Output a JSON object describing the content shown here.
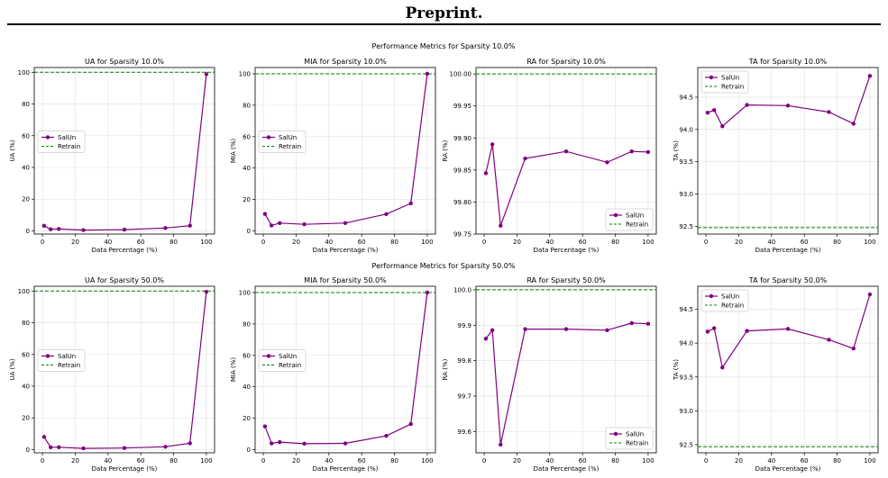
{
  "header": {
    "title": "Preprint."
  },
  "colors": {
    "salun": "#800080",
    "retrain": "#008000",
    "grid": "#e0e0e0"
  },
  "rows": [
    {
      "suptitle": "Performance Metrics for Sparsity 10.0%"
    },
    {
      "suptitle": "Performance Metrics for Sparsity 50.0%"
    }
  ],
  "chart_data": [
    {
      "type": "line",
      "title": "UA for Sparsity 10.0%",
      "xlabel": "Data Percentage (%)",
      "ylabel": "UA (%)",
      "xlim": [
        -5,
        105
      ],
      "ylim": [
        -2,
        103
      ],
      "xticks": [
        0,
        20,
        40,
        60,
        80,
        100
      ],
      "xtick_labels": [
        "0",
        "20",
        "40",
        "60",
        "80",
        "100"
      ],
      "yticks": [
        0,
        20,
        40,
        60,
        80,
        100
      ],
      "ytick_labels": [
        "0",
        "20",
        "40",
        "60",
        "80",
        "100"
      ],
      "x": [
        1,
        5,
        10,
        25,
        50,
        75,
        90,
        100
      ],
      "series": [
        {
          "name": "SalUn",
          "values": [
            3.2,
            1.0,
            1.2,
            0.5,
            0.8,
            1.8,
            3.3,
            98.8
          ]
        }
      ],
      "reference": {
        "name": "Retrain",
        "value": 100
      },
      "legend": "center-left",
      "grid": true
    },
    {
      "type": "line",
      "title": "MIA for Sparsity 10.0%",
      "xlabel": "Data Percentage (%)",
      "ylabel": "MIA (%)",
      "xlim": [
        -5,
        105
      ],
      "ylim": [
        -2,
        104
      ],
      "xticks": [
        0,
        20,
        40,
        60,
        80,
        100
      ],
      "xtick_labels": [
        "0",
        "20",
        "40",
        "60",
        "80",
        "100"
      ],
      "yticks": [
        0,
        20,
        40,
        60,
        80,
        100
      ],
      "ytick_labels": [
        "0",
        "20",
        "40",
        "60",
        "80",
        "100"
      ],
      "x": [
        1,
        5,
        10,
        25,
        50,
        75,
        90,
        100
      ],
      "series": [
        {
          "name": "SalUn",
          "values": [
            10.8,
            3.5,
            5.0,
            4.2,
            5.0,
            10.7,
            17.5,
            100
          ]
        }
      ],
      "reference": {
        "name": "Retrain",
        "value": 100
      },
      "legend": "center-left",
      "grid": true
    },
    {
      "type": "line",
      "title": "RA for Sparsity 10.0%",
      "xlabel": "Data Percentage (%)",
      "ylabel": "RA (%)",
      "xlim": [
        -5,
        105
      ],
      "ylim": [
        99.75,
        100.01
      ],
      "xticks": [
        0,
        20,
        40,
        60,
        80,
        100
      ],
      "xtick_labels": [
        "0",
        "20",
        "40",
        "60",
        "80",
        "100"
      ],
      "yticks": [
        99.75,
        99.8,
        99.85,
        99.9,
        99.95,
        100.0
      ],
      "ytick_labels": [
        "99.75",
        "99.80",
        "99.85",
        "99.90",
        "99.95",
        "100.00"
      ],
      "x": [
        1,
        5,
        10,
        25,
        50,
        75,
        90,
        100
      ],
      "series": [
        {
          "name": "SalUn",
          "values": [
            99.845,
            99.89,
            99.763,
            99.868,
            99.879,
            99.862,
            99.879,
            99.878
          ]
        }
      ],
      "reference": {
        "name": "Retrain",
        "value": 100.0
      },
      "legend": "lower-right",
      "grid": true
    },
    {
      "type": "line",
      "title": "TA for Sparsity 10.0%",
      "xlabel": "Data Percentage (%)",
      "ylabel": "TA (%)",
      "xlim": [
        -5,
        105
      ],
      "ylim": [
        92.38,
        94.96
      ],
      "xticks": [
        0,
        20,
        40,
        60,
        80,
        100
      ],
      "xtick_labels": [
        "0",
        "20",
        "40",
        "60",
        "80",
        "100"
      ],
      "yticks": [
        92.5,
        93.0,
        93.5,
        94.0,
        94.5
      ],
      "ytick_labels": [
        "92.5",
        "93.0",
        "93.5",
        "94.0",
        "94.5"
      ],
      "x": [
        1,
        5,
        10,
        25,
        50,
        75,
        90,
        100
      ],
      "series": [
        {
          "name": "SalUn",
          "values": [
            94.26,
            94.3,
            94.05,
            94.38,
            94.37,
            94.27,
            94.09,
            94.83
          ]
        }
      ],
      "reference": {
        "name": "Retrain",
        "value": 92.48
      },
      "legend": "upper-left",
      "grid": true
    },
    {
      "type": "line",
      "title": "UA for Sparsity 50.0%",
      "xlabel": "Data Percentage (%)",
      "ylabel": "UA (%)",
      "xlim": [
        -5,
        105
      ],
      "ylim": [
        -2,
        103
      ],
      "xticks": [
        0,
        20,
        40,
        60,
        80,
        100
      ],
      "xtick_labels": [
        "0",
        "20",
        "40",
        "60",
        "80",
        "100"
      ],
      "yticks": [
        0,
        20,
        40,
        60,
        80,
        100
      ],
      "ytick_labels": [
        "0",
        "20",
        "40",
        "60",
        "80",
        "100"
      ],
      "x": [
        1,
        5,
        10,
        25,
        50,
        75,
        90,
        100
      ],
      "series": [
        {
          "name": "SalUn",
          "values": [
            8.0,
            1.5,
            1.5,
            0.8,
            1.0,
            1.8,
            4.0,
            99.5
          ]
        }
      ],
      "reference": {
        "name": "Retrain",
        "value": 100
      },
      "legend": "center-left",
      "grid": true
    },
    {
      "type": "line",
      "title": "MIA for Sparsity 50.0%",
      "xlabel": "Data Percentage (%)",
      "ylabel": "MIA (%)",
      "xlim": [
        -5,
        105
      ],
      "ylim": [
        -2,
        104
      ],
      "xticks": [
        0,
        20,
        40,
        60,
        80,
        100
      ],
      "xtick_labels": [
        "0",
        "20",
        "40",
        "60",
        "80",
        "100"
      ],
      "yticks": [
        0,
        20,
        40,
        60,
        80,
        100
      ],
      "ytick_labels": [
        "0",
        "20",
        "40",
        "60",
        "80",
        "100"
      ],
      "x": [
        1,
        5,
        10,
        25,
        50,
        75,
        90,
        100
      ],
      "series": [
        {
          "name": "SalUn",
          "values": [
            14.8,
            4.0,
            4.8,
            3.8,
            4.0,
            8.8,
            16.3,
            100
          ]
        }
      ],
      "reference": {
        "name": "Retrain",
        "value": 100
      },
      "legend": "center-left",
      "grid": true
    },
    {
      "type": "line",
      "title": "RA for Sparsity 50.0%",
      "xlabel": "Data Percentage (%)",
      "ylabel": "RA (%)",
      "xlim": [
        -5,
        105
      ],
      "ylim": [
        99.54,
        100.01
      ],
      "xticks": [
        0,
        20,
        40,
        60,
        80,
        100
      ],
      "xtick_labels": [
        "0",
        "20",
        "40",
        "60",
        "80",
        "100"
      ],
      "yticks": [
        99.6,
        99.7,
        99.8,
        99.9,
        100.0
      ],
      "ytick_labels": [
        "99.6",
        "99.7",
        "99.8",
        "99.9",
        "100.0"
      ],
      "x": [
        1,
        5,
        10,
        25,
        50,
        75,
        90,
        100
      ],
      "series": [
        {
          "name": "SalUn",
          "values": [
            99.862,
            99.886,
            99.563,
            99.889,
            99.889,
            99.886,
            99.906,
            99.904
          ]
        }
      ],
      "reference": {
        "name": "Retrain",
        "value": 100.0
      },
      "legend": "lower-right",
      "grid": true
    },
    {
      "type": "line",
      "title": "TA for Sparsity 50.0%",
      "xlabel": "Data Percentage (%)",
      "ylabel": "TA (%)",
      "xlim": [
        -5,
        105
      ],
      "ylim": [
        92.38,
        94.84
      ],
      "xticks": [
        0,
        20,
        40,
        60,
        80,
        100
      ],
      "xtick_labels": [
        "0",
        "20",
        "40",
        "60",
        "80",
        "100"
      ],
      "yticks": [
        92.5,
        93.0,
        93.5,
        94.0,
        94.5
      ],
      "ytick_labels": [
        "92.5",
        "93.0",
        "93.5",
        "94.0",
        "94.5"
      ],
      "x": [
        1,
        5,
        10,
        25,
        50,
        75,
        90,
        100
      ],
      "series": [
        {
          "name": "SalUn",
          "values": [
            94.17,
            94.22,
            93.64,
            94.18,
            94.21,
            94.05,
            93.92,
            94.72
          ]
        }
      ],
      "reference": {
        "name": "Retrain",
        "value": 92.47
      },
      "legend": "upper-left",
      "grid": true
    }
  ]
}
